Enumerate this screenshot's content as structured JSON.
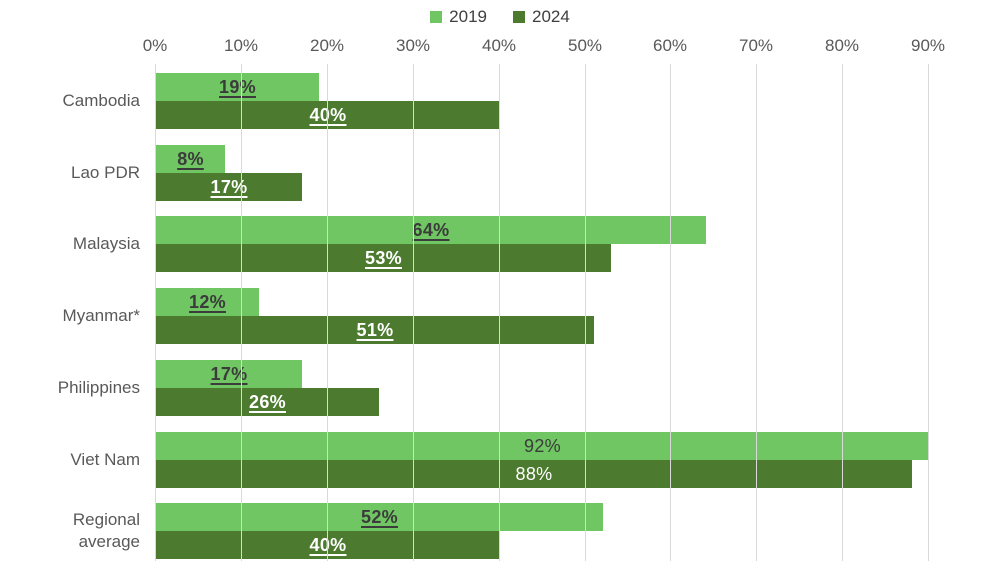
{
  "chart_data": {
    "type": "bar",
    "orientation": "horizontal",
    "title": "",
    "legend": {
      "position": "top",
      "items": [
        {
          "label": "2019",
          "color": "#6FC662"
        },
        {
          "label": "2024",
          "color": "#4C7A2F"
        }
      ]
    },
    "x_axis": {
      "position": "top",
      "unit": "%",
      "min": 0,
      "max": 90,
      "tick_step": 10,
      "ticks": [
        "0%",
        "10%",
        "20%",
        "30%",
        "40%",
        "50%",
        "60%",
        "70%",
        "80%",
        "90%"
      ],
      "grid": true
    },
    "categories": [
      "Cambodia",
      "Lao PDR",
      "Malaysia",
      "Myanmar*",
      "Philippines",
      "Viet Nam",
      "Regional\naverage"
    ],
    "series": [
      {
        "name": "2019",
        "color": "#6FC662",
        "values": [
          19,
          8,
          64,
          12,
          17,
          92,
          52
        ]
      },
      {
        "name": "2024",
        "color": "#4C7A2F",
        "values": [
          40,
          17,
          53,
          51,
          26,
          88,
          40
        ]
      }
    ],
    "data_labels": {
      "format": "{value}%",
      "texts": [
        [
          "19%",
          "40%"
        ],
        [
          "8%",
          "17%"
        ],
        [
          "64%",
          "53%"
        ],
        [
          "12%",
          "51%"
        ],
        [
          "17%",
          "26%"
        ],
        [
          "92%",
          "88%"
        ],
        [
          "52%",
          "40%"
        ]
      ],
      "bold_underlined_rows": [
        true,
        true,
        true,
        true,
        true,
        false,
        true
      ],
      "color_on_2019_bars": "#3B3B3B",
      "color_on_2024_bars": "#FFFFFF"
    },
    "gridline_color": "#D9D9D9",
    "axis_text_color": "#595959",
    "legend_text_color": "#3F3F3F"
  }
}
